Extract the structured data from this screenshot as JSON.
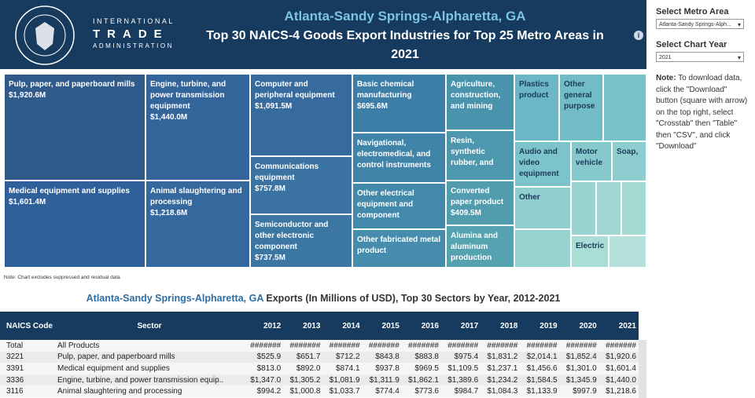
{
  "header": {
    "agency": [
      "INTERNATIONAL",
      "TRADE",
      "ADMINISTRATION"
    ],
    "metro": "Atlanta-Sandy Springs-Alpharetta, GA",
    "title": "Top 30 NAICS-4 Goods Export Industries for Top 25 Metro Areas in",
    "title_year": "2021"
  },
  "controls": {
    "metro_label": "Select Metro Area",
    "metro_value": "Atlanta-Sandy Springs-Alph...",
    "year_label": "Select Chart Year",
    "year_value": "2021",
    "note_bold": "Note:",
    "note_text": "To download data, click the \"Download\" button (square with arrow) on the top right, select \"Crosstab\" then \"Table\" then \"CSV\", and click \"Download\""
  },
  "treemap": {
    "tiles": [
      {
        "label": "Pulp, paper, and paperboard mills",
        "value": "$1,920.6M"
      },
      {
        "label": "Medical equipment and supplies",
        "value": "$1,601.4M"
      },
      {
        "label": "Engine, turbine, and power transmission equipment",
        "value": "$1,440.0M"
      },
      {
        "label": "Animal slaughtering and processing",
        "value": "$1,218.6M"
      },
      {
        "label": "Computer and peripheral equipment",
        "value": "$1,091.5M"
      },
      {
        "label": "Communications equipment",
        "value": "$757.8M"
      },
      {
        "label": "Semiconductor and other electronic component",
        "value": "$737.5M"
      },
      {
        "label": "Basic chemical manufacturing",
        "value": "$695.6M"
      },
      {
        "label": "Navigational, electromedical, and control instruments"
      },
      {
        "label": "Other electrical equipment and component"
      },
      {
        "label": "Other fabricated metal product"
      },
      {
        "label": "Agriculture, construction, and mining"
      },
      {
        "label": "Resin, synthetic rubber, and"
      },
      {
        "label": "Converted paper product",
        "value": "$409.5M"
      },
      {
        "label": "Alumina and aluminum production"
      },
      {
        "label": "Plastics product"
      },
      {
        "label": "Other general purpose"
      },
      {
        "label": "Audio and video equipment"
      },
      {
        "label": "Motor vehicle"
      },
      {
        "label": "Soap,"
      },
      {
        "label": "Other"
      },
      {
        "label": "Electric"
      }
    ],
    "note": "Note: Chart excludes suppressed and residual data"
  },
  "table": {
    "title_metro": "Atlanta-Sandy Springs-Alpharetta, GA",
    "title_rest": "Exports (In Millions of USD), Top 30 Sectors by Year, 2012-2021",
    "columns": [
      "NAICS Code",
      "Sector",
      "2012",
      "2013",
      "2014",
      "2015",
      "2016",
      "2017",
      "2018",
      "2019",
      "2020",
      "2021"
    ],
    "rows": [
      [
        "Total",
        "All Products",
        "#######",
        "#######",
        "#######",
        "#######",
        "#######",
        "#######",
        "#######",
        "#######",
        "#######",
        "#######"
      ],
      [
        "3221",
        "Pulp, paper, and paperboard mills",
        "$525.9",
        "$651.7",
        "$712.2",
        "$843.8",
        "$883.8",
        "$975.4",
        "$1,831.2",
        "$2,014.1",
        "$1,852.4",
        "$1,920.6"
      ],
      [
        "3391",
        "Medical equipment and supplies",
        "$813.0",
        "$892.0",
        "$874.1",
        "$937.8",
        "$969.5",
        "$1,109.5",
        "$1,237.1",
        "$1,456.6",
        "$1,301.0",
        "$1,601.4"
      ],
      [
        "3336",
        "Engine, turbine, and power transmission equip..",
        "$1,347.0",
        "$1,305.2",
        "$1,081.9",
        "$1,311.9",
        "$1,862.1",
        "$1,389.6",
        "$1,234.2",
        "$1,584.5",
        "$1,345.9",
        "$1,440.0"
      ],
      [
        "3116",
        "Animal slaughtering and processing",
        "$994.2",
        "$1,000.8",
        "$1,033.7",
        "$774.4",
        "$773.6",
        "$984.7",
        "$1,084.3",
        "$1,133.9",
        "$997.9",
        "$1,218.6"
      ]
    ]
  }
}
